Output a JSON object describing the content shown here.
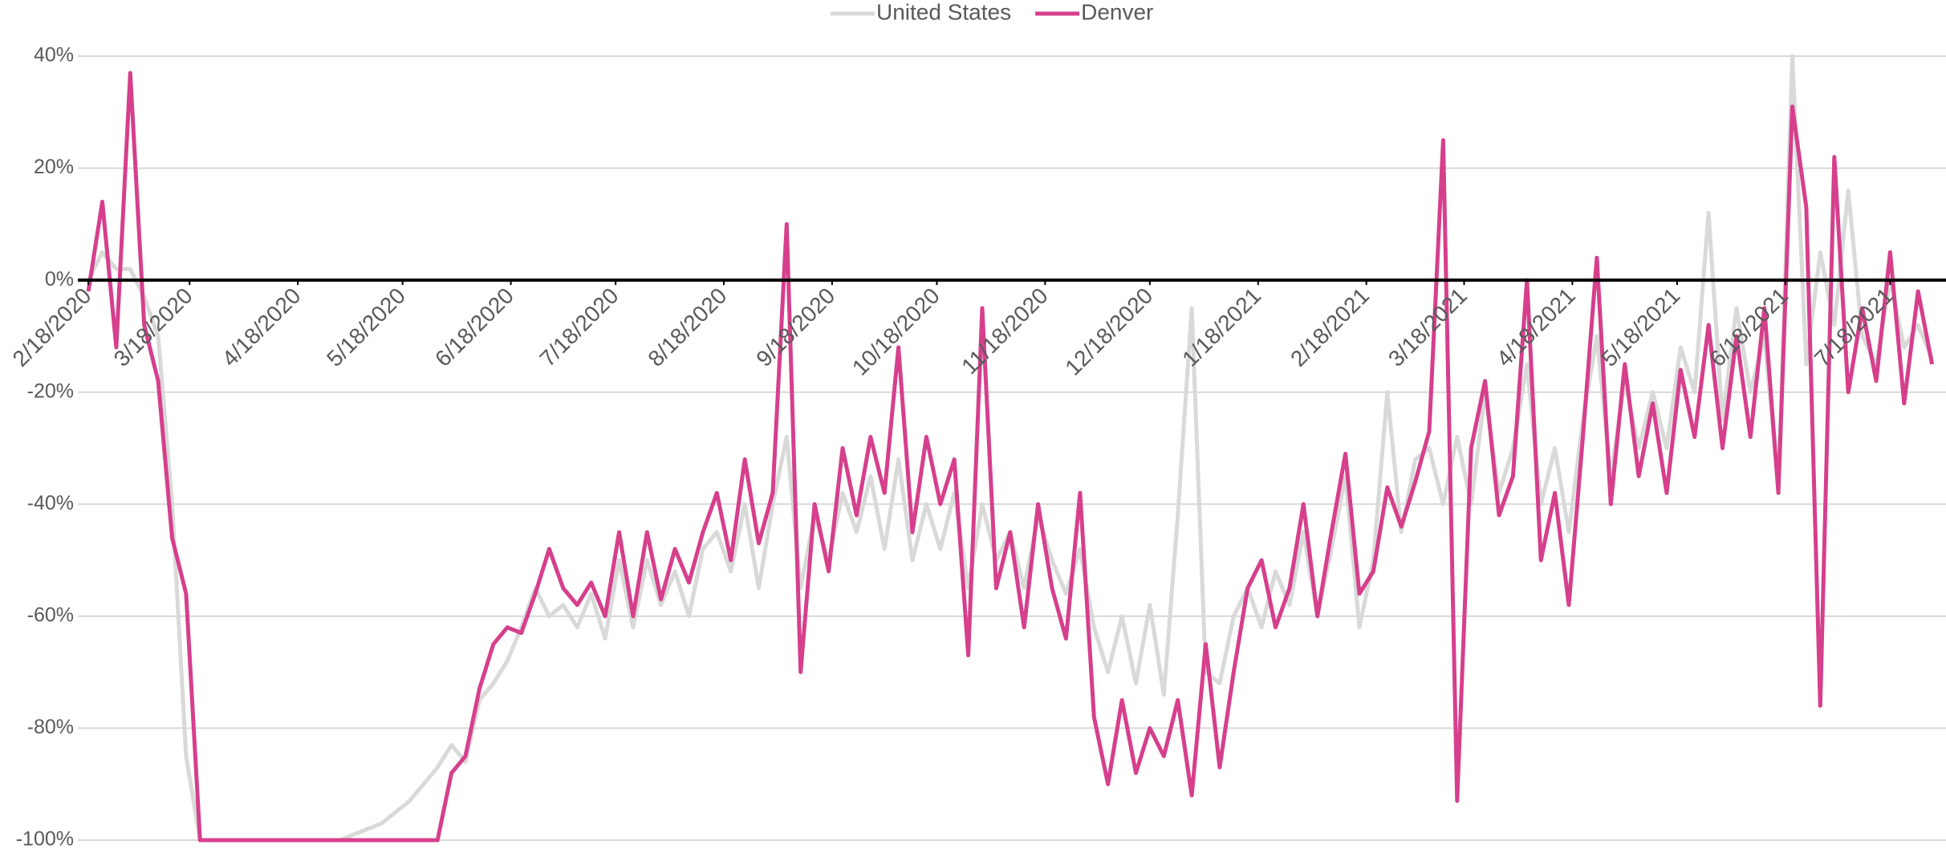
{
  "chart_data": {
    "type": "line",
    "x": [
      "2/18/2020",
      "2/22/2020",
      "2/26/2020",
      "3/1/2020",
      "3/5/2020",
      "3/9/2020",
      "3/13/2020",
      "3/17/2020",
      "3/21/2020",
      "3/25/2020",
      "3/29/2020",
      "4/2/2020",
      "4/6/2020",
      "4/10/2020",
      "4/14/2020",
      "4/18/2020",
      "4/22/2020",
      "4/26/2020",
      "4/30/2020",
      "5/4/2020",
      "5/8/2020",
      "5/12/2020",
      "5/16/2020",
      "5/20/2020",
      "5/24/2020",
      "5/28/2020",
      "6/1/2020",
      "6/5/2020",
      "6/9/2020",
      "6/13/2020",
      "6/17/2020",
      "6/21/2020",
      "6/25/2020",
      "6/29/2020",
      "7/3/2020",
      "7/7/2020",
      "7/11/2020",
      "7/15/2020",
      "7/19/2020",
      "7/23/2020",
      "7/27/2020",
      "7/31/2020",
      "8/4/2020",
      "8/8/2020",
      "8/12/2020",
      "8/16/2020",
      "8/20/2020",
      "8/24/2020",
      "8/28/2020",
      "9/1/2020",
      "9/5/2020",
      "9/9/2020",
      "9/13/2020",
      "9/17/2020",
      "9/21/2020",
      "9/25/2020",
      "9/29/2020",
      "10/3/2020",
      "10/7/2020",
      "10/11/2020",
      "10/15/2020",
      "10/19/2020",
      "10/23/2020",
      "10/27/2020",
      "10/31/2020",
      "11/4/2020",
      "11/8/2020",
      "11/12/2020",
      "11/16/2020",
      "11/20/2020",
      "11/24/2020",
      "11/28/2020",
      "12/2/2020",
      "12/6/2020",
      "12/10/2020",
      "12/14/2020",
      "12/18/2020",
      "12/22/2020",
      "12/26/2020",
      "12/30/2020",
      "1/3/2021",
      "1/7/2021",
      "1/11/2021",
      "1/15/2021",
      "1/19/2021",
      "1/23/2021",
      "1/27/2021",
      "1/31/2021",
      "2/4/2021",
      "2/8/2021",
      "2/12/2021",
      "2/16/2021",
      "2/20/2021",
      "2/24/2021",
      "2/28/2021",
      "3/4/2021",
      "3/8/2021",
      "3/12/2021",
      "3/16/2021",
      "3/20/2021",
      "3/24/2021",
      "3/28/2021",
      "4/1/2021",
      "4/5/2021",
      "4/9/2021",
      "4/13/2021",
      "4/17/2021",
      "4/21/2021",
      "4/25/2021",
      "4/29/2021",
      "5/3/2021",
      "5/7/2021",
      "5/11/2021",
      "5/15/2021",
      "5/19/2021",
      "5/23/2021",
      "5/27/2021",
      "5/31/2021",
      "6/4/2021",
      "6/8/2021",
      "6/12/2021",
      "6/16/2021",
      "6/20/2021",
      "6/24/2021",
      "6/28/2021",
      "7/2/2021",
      "7/6/2021",
      "7/10/2021",
      "7/14/2021",
      "7/18/2021",
      "7/22/2021",
      "7/26/2021",
      "7/30/2021"
    ],
    "series": [
      {
        "name": "United States",
        "color": "#d9d9d9",
        "values": [
          0,
          5,
          2,
          2,
          -3,
          -10,
          -40,
          -85,
          -100,
          -100,
          -100,
          -100,
          -100,
          -100,
          -100,
          -100,
          -100,
          -100,
          -100,
          -99,
          -98,
          -97,
          -95,
          -93,
          -90,
          -87,
          -83,
          -86,
          -75,
          -72,
          -68,
          -62,
          -55,
          -60,
          -58,
          -62,
          -56,
          -64,
          -50,
          -62,
          -50,
          -58,
          -52,
          -60,
          -48,
          -45,
          -52,
          -40,
          -55,
          -40,
          -28,
          -55,
          -42,
          -50,
          -38,
          -45,
          -35,
          -48,
          -32,
          -50,
          -40,
          -48,
          -38,
          -55,
          -40,
          -50,
          -45,
          -55,
          -42,
          -50,
          -56,
          -48,
          -62,
          -70,
          -60,
          -72,
          -58,
          -74,
          -42,
          -5,
          -70,
          -72,
          -60,
          -55,
          -62,
          -52,
          -58,
          -45,
          -60,
          -48,
          -35,
          -62,
          -50,
          -20,
          -45,
          -32,
          -30,
          -40,
          -28,
          -40,
          -20,
          -38,
          -30,
          -15,
          -40,
          -30,
          -45,
          -25,
          -10,
          -35,
          -18,
          -30,
          -20,
          -30,
          -12,
          -20,
          12,
          -25,
          -5,
          -20,
          -10,
          -37,
          40,
          -15,
          5,
          -8,
          16,
          -10,
          -15,
          0,
          -12,
          -8,
          -14
        ]
      },
      {
        "name": "Denver",
        "color": "#d63f8c",
        "values": [
          -2,
          14,
          -12,
          37,
          -8,
          -18,
          -46,
          -56,
          -100,
          -100,
          -100,
          -100,
          -100,
          -100,
          -100,
          -100,
          -100,
          -100,
          -100,
          -100,
          -100,
          -100,
          -100,
          -100,
          -100,
          -100,
          -88,
          -85,
          -73,
          -65,
          -62,
          -63,
          -56,
          -48,
          -55,
          -58,
          -54,
          -60,
          -45,
          -60,
          -45,
          -57,
          -48,
          -54,
          -45,
          -38,
          -50,
          -32,
          -47,
          -38,
          10,
          -70,
          -40,
          -52,
          -30,
          -42,
          -28,
          -38,
          -12,
          -45,
          -28,
          -40,
          -32,
          -67,
          -5,
          -55,
          -45,
          -62,
          -40,
          -55,
          -64,
          -38,
          -78,
          -90,
          -75,
          -88,
          -80,
          -85,
          -75,
          -92,
          -65,
          -87,
          -70,
          -55,
          -50,
          -62,
          -55,
          -40,
          -60,
          -45,
          -31,
          -56,
          -52,
          -37,
          -44,
          -36,
          -27,
          25,
          -93,
          -30,
          -18,
          -42,
          -35,
          0,
          -50,
          -38,
          -58,
          -28,
          4,
          -40,
          -15,
          -35,
          -22,
          -38,
          -16,
          -28,
          -8,
          -30,
          -10,
          -28,
          -5,
          -38,
          31,
          13,
          -76,
          22,
          -20,
          -5,
          -18,
          5,
          -22,
          -2,
          -15
        ]
      }
    ],
    "xlim": [
      "2/15/2020",
      "8/3/2021"
    ],
    "xticks": [
      "2/18/2020",
      "3/18/2020",
      "4/18/2020",
      "5/18/2020",
      "6/18/2020",
      "7/18/2020",
      "8/18/2020",
      "9/18/2020",
      "10/18/2020",
      "11/18/2020",
      "12/18/2020",
      "1/18/2021",
      "2/18/2021",
      "3/18/2021",
      "4/18/2021",
      "5/18/2021",
      "6/18/2021",
      "7/18/2021"
    ],
    "ylim": [
      -100,
      40
    ],
    "yticks": [
      {
        "value": 40,
        "label": "40%"
      },
      {
        "value": 20,
        "label": "20%"
      },
      {
        "value": 0,
        "label": "0%"
      },
      {
        "value": -20,
        "label": "-20%"
      },
      {
        "value": -40,
        "label": "-40%"
      },
      {
        "value": -60,
        "label": "-60%"
      },
      {
        "value": -80,
        "label": "-80%"
      },
      {
        "value": -100,
        "label": "-100%"
      }
    ],
    "grid": true,
    "legend": "top"
  }
}
